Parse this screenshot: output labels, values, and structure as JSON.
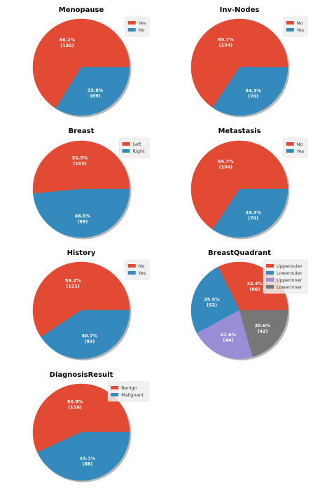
{
  "chart_data": [
    {
      "type": "pie",
      "title": "Menopause",
      "labels": [
        "Yes",
        "No"
      ],
      "values": [
        135,
        69
      ],
      "percents": [
        "66.2%",
        "33.8%"
      ],
      "counts": [
        "(135)",
        "(69)"
      ],
      "colors": [
        "#E24A33",
        "#348ABD"
      ],
      "legend": "top-right"
    },
    {
      "type": "pie",
      "title": "Inv-Nodes",
      "labels": [
        "No",
        "Yes"
      ],
      "values": [
        134,
        70
      ],
      "percents": [
        "65.7%",
        "34.3%"
      ],
      "counts": [
        "(134)",
        "(70)"
      ],
      "colors": [
        "#E24A33",
        "#348ABD"
      ],
      "legend": "top-right"
    },
    {
      "type": "pie",
      "title": "Breast",
      "labels": [
        "Left",
        "Right"
      ],
      "values": [
        105,
        99
      ],
      "percents": [
        "51.5%",
        "48.5%"
      ],
      "counts": [
        "(105)",
        "(99)"
      ],
      "colors": [
        "#E24A33",
        "#348ABD"
      ],
      "legend": "top-right"
    },
    {
      "type": "pie",
      "title": "Metastasis",
      "labels": [
        "No",
        "Yes"
      ],
      "values": [
        134,
        70
      ],
      "percents": [
        "65.7%",
        "34.3%"
      ],
      "counts": [
        "(134)",
        "(70)"
      ],
      "colors": [
        "#E24A33",
        "#348ABD"
      ],
      "legend": "top-right"
    },
    {
      "type": "pie",
      "title": "History",
      "labels": [
        "No",
        "Yes"
      ],
      "values": [
        121,
        83
      ],
      "percents": [
        "59.3%",
        "40.7%"
      ],
      "counts": [
        "(121)",
        "(83)"
      ],
      "colors": [
        "#E24A33",
        "#348ABD"
      ],
      "legend": "top-right"
    },
    {
      "type": "pie",
      "title": "BreastQuadrant",
      "labels": [
        "Upperouter",
        "Lowerouter",
        "Upperinner",
        "Lowerinner"
      ],
      "values": [
        66,
        52,
        44,
        42
      ],
      "percents": [
        "32.4%",
        "25.5%",
        "21.6%",
        "20.6%"
      ],
      "counts": [
        "(66)",
        "(52)",
        "(44)",
        "(42)"
      ],
      "colors": [
        "#E24A33",
        "#348ABD",
        "#988ED5",
        "#777777"
      ],
      "legend": "top-right"
    },
    {
      "type": "pie",
      "title": "DiagnosisResult",
      "labels": [
        "Benign",
        "Malignant"
      ],
      "values": [
        116,
        88
      ],
      "percents": [
        "56.9%",
        "43.1%"
      ],
      "counts": [
        "(116)",
        "(88)"
      ],
      "colors": [
        "#E24A33",
        "#348ABD"
      ],
      "legend": "top-right"
    }
  ]
}
